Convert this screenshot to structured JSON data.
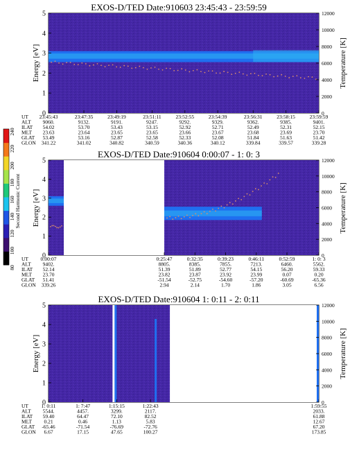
{
  "chart_data": [
    {
      "type": "heatmap",
      "title": "EXOS-D/TED   Date:910603  23:45:43 - 23:59:59",
      "ylabel": "Energy [eV]",
      "ylabel_right": "Temperature [K]",
      "ylim": [
        0,
        5
      ],
      "ylim_right": [
        0,
        12000
      ],
      "yticks": [
        0,
        1,
        2,
        3,
        4,
        5
      ],
      "yticks_right": [
        0,
        2000,
        4000,
        6000,
        8000,
        10000,
        12000
      ],
      "data_gaps_utc": [],
      "orbit_table": {
        "row_labels": [
          "UT",
          "ALT",
          "ILAT",
          "MLT",
          "GLAT",
          "GLON"
        ],
        "columns": [
          [
            "23:45:43",
            "9060.",
            "54.02",
            "23.63",
            "53.49",
            "341.22"
          ],
          [
            "23:47:35",
            "9132.",
            "53.70",
            "23.64",
            "53.16",
            "341.02"
          ],
          [
            "23:49:19",
            "9191.",
            "53.43",
            "23.65",
            "52.87",
            "340.82"
          ],
          [
            "23:51:11",
            "9247.",
            "53.15",
            "23.65",
            "52.58",
            "340.59"
          ],
          [
            "23:52:55",
            "9292.",
            "52.92",
            "23.66",
            "52.33",
            "340.36"
          ],
          [
            "23:54:39",
            "9329.",
            "52.71",
            "23.67",
            "52.08",
            "340.12"
          ],
          [
            "23:56:31",
            "9362.",
            "52.49",
            "23.68",
            "51.84",
            "339.84"
          ],
          [
            "23:58:15",
            "9385.",
            "52.31",
            "23.69",
            "51.63",
            "339.57"
          ],
          [
            "23:59:59",
            "9401.",
            "52.15",
            "23.70",
            "51.42",
            "339.28"
          ]
        ]
      }
    },
    {
      "type": "heatmap",
      "title": "EXOS-D/TED   Date:910604  0:00:07 - 1: 0: 3",
      "ylabel": "Energy [eV]",
      "ylabel_right": "Temperature [K]",
      "ylim": [
        0,
        5
      ],
      "ylim_right": [
        0,
        12000
      ],
      "yticks": [
        0,
        1,
        2,
        3,
        4,
        5
      ],
      "yticks_right": [
        0,
        2000,
        4000,
        6000,
        8000,
        10000,
        12000
      ],
      "data_gaps_utc": [
        [
          "0:03:30",
          "0:25:47"
        ]
      ],
      "orbit_table": {
        "row_labels": [
          "UT",
          "ALT",
          "ILAT",
          "MLT",
          "GLAT",
          "GLON"
        ],
        "columns": [
          [
            "0:00:07",
            "9402.",
            "52.14",
            "23.70",
            "51.41",
            "339.26"
          ],
          [
            "0:25:47",
            "8805.",
            "51.39",
            "23.82",
            "-51.54",
            "2.94"
          ],
          [
            "0:32:35",
            "8385.",
            "51.89",
            "23.87",
            "-52.75",
            "2.14"
          ],
          [
            "0:39:23",
            "7855.",
            "52.77",
            "23.92",
            "-54.60",
            "1.70"
          ],
          [
            "0:46:11",
            "7213.",
            "54.15",
            "23.99",
            "-57.20",
            "1.86"
          ],
          [
            "0:52:59",
            "6460.",
            "56.20",
            "0.07",
            "-60.69",
            "3.05"
          ],
          [
            "1: 0: 3",
            "5562.",
            "59.33",
            "0.20",
            "-65.36",
            "6.56"
          ]
        ]
      }
    },
    {
      "type": "heatmap",
      "title": "EXOS-D/TED   Date:910604  1: 0:11 - 2: 0:11",
      "ylabel": "Energy [eV]",
      "ylabel_right": "Temperature [K]",
      "ylim": [
        0,
        5
      ],
      "ylim_right": [
        0,
        12000
      ],
      "yticks": [
        0,
        1,
        2,
        3,
        4,
        5
      ],
      "yticks_right": [
        0,
        2000,
        4000,
        6000,
        8000,
        10000,
        12000
      ],
      "data_gaps_utc": [
        [
          "1:27:00",
          "1:59:50"
        ]
      ],
      "orbit_table": {
        "row_labels": [
          "UT",
          "ALT",
          "ILAT",
          "MLT",
          "GLAT",
          "GLON"
        ],
        "columns": [
          [
            "1: 0:11",
            "5544.",
            "59.40",
            "0.21",
            "-65.46",
            "6.67"
          ],
          [
            "1: 7:47",
            "4457.",
            "64.47",
            "0.46",
            "-71.54",
            "17.15"
          ],
          [
            "1:15:15",
            "3299.",
            "72.10",
            "1.13",
            "-76.69",
            "47.65"
          ],
          [
            "1:22:43",
            "2117.",
            "82.52",
            "5.83",
            "-72.76",
            "100.27"
          ],
          [
            "1:59:55",
            "2033.",
            "61.88",
            "12.67",
            "67.20",
            "173.85"
          ]
        ]
      }
    }
  ],
  "colorbar": {
    "label": "Second Harmonic Current",
    "ticks": [
      "80",
      "100",
      "120",
      "140",
      "160",
      "180",
      "200",
      "220",
      "240"
    ],
    "colors": [
      "#000000",
      "#3c0f6e",
      "#2a1fb4",
      "#1f56e6",
      "#1cc4ee",
      "#1fc97a",
      "#a6e44a",
      "#f2d628",
      "#f4791b",
      "#e11616"
    ]
  },
  "colors": {
    "background_dominant": "#4527a6",
    "band": "#1f6ff0",
    "band_core": "#2db0f2",
    "temperature_points": "#d88c6c"
  }
}
